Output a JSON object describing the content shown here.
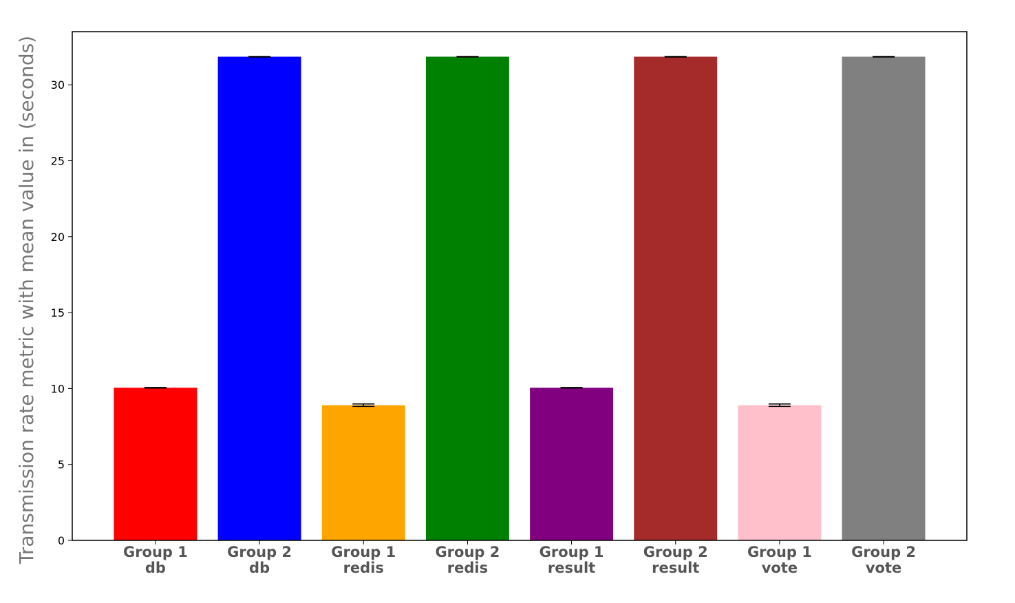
{
  "chart_data": {
    "type": "bar",
    "categories": [
      [
        "Group 1",
        "db"
      ],
      [
        "Group 2",
        "db"
      ],
      [
        "Group 1",
        "redis"
      ],
      [
        "Group 2",
        "redis"
      ],
      [
        "Group 1",
        "result"
      ],
      [
        "Group 2",
        "result"
      ],
      [
        "Group 1",
        "vote"
      ],
      [
        "Group 2",
        "vote"
      ]
    ],
    "values": [
      10.05,
      31.85,
      8.9,
      31.85,
      10.05,
      31.85,
      8.9,
      31.85
    ],
    "errors": [
      0.02,
      0.02,
      0.08,
      0.02,
      0.02,
      0.02,
      0.08,
      0.02
    ],
    "colors": [
      "#ff0000",
      "#0000ff",
      "#ffa500",
      "#008000",
      "#800080",
      "#a52a2a",
      "#ffc0cb",
      "#808080"
    ],
    "title": "",
    "xlabel": "",
    "ylabel": "Transmission rate metric with mean value in (seconds)",
    "ylim": [
      0,
      33.5
    ],
    "yticks": [
      0,
      5,
      10,
      15,
      20,
      25,
      30
    ],
    "grid": false
  }
}
